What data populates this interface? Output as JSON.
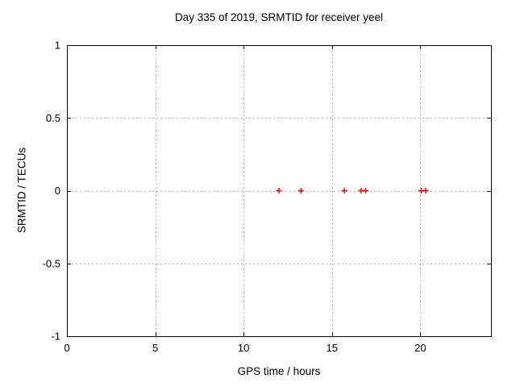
{
  "chart_data": {
    "type": "scatter",
    "title": "Day 335 of 2019, SRMTID for receiver yeel",
    "xlabel": "GPS time / hours",
    "ylabel": "SRMTID / TECUs",
    "xlim": [
      0,
      24
    ],
    "ylim": [
      -1,
      1
    ],
    "xticks": [
      0,
      5,
      10,
      15,
      20
    ],
    "yticks": [
      -1,
      -0.5,
      0,
      0.5,
      1
    ],
    "grid": true,
    "legend": "none",
    "marker": "plus",
    "marker_color": "#e00000",
    "grid_color": "#b0b0b0",
    "border_color": "#000000",
    "series": [
      {
        "name": "SRMTID",
        "x": [
          12.0,
          13.25,
          15.7,
          16.65,
          16.9,
          20.05,
          20.3
        ],
        "y": [
          0,
          0,
          0,
          0,
          0,
          0,
          0
        ]
      }
    ]
  }
}
